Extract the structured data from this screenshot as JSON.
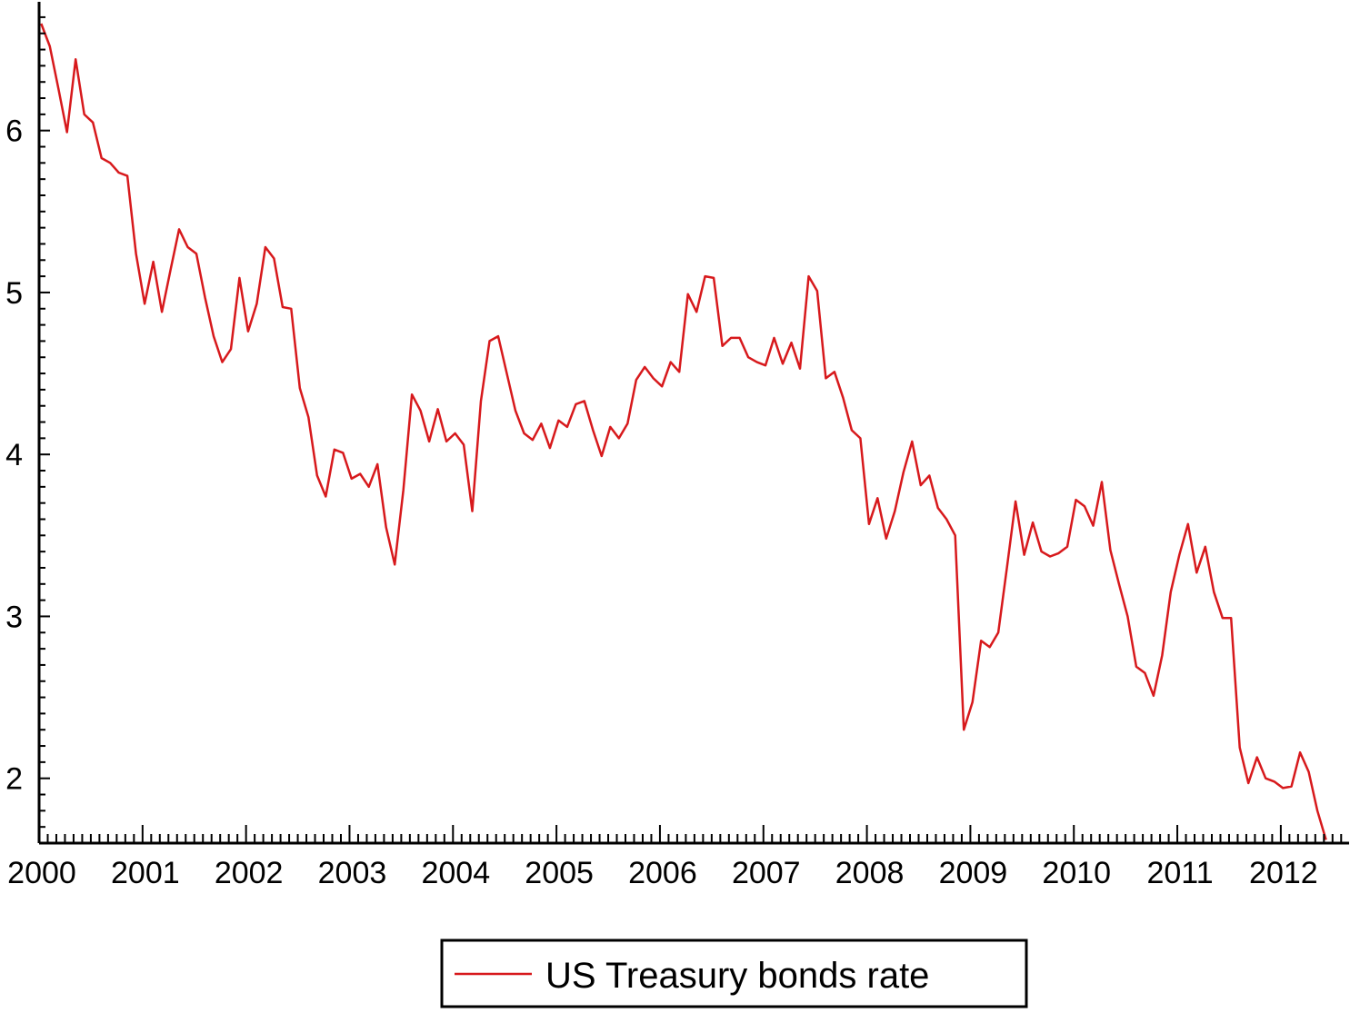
{
  "chart_data": {
    "type": "line",
    "title": "",
    "xlabel": "",
    "ylabel": "",
    "x_start": "2000-01",
    "x_step": "month",
    "xlim": [
      2000.0,
      2012.66
    ],
    "ylim": [
      1.6,
      6.75
    ],
    "x_ticks": [
      2000,
      2001,
      2002,
      2003,
      2004,
      2005,
      2006,
      2007,
      2008,
      2009,
      2010,
      2011,
      2012
    ],
    "x_tick_labels": [
      "2000",
      "2001",
      "2002",
      "2003",
      "2004",
      "2005",
      "2006",
      "2007",
      "2008",
      "2009",
      "2010",
      "2011",
      "2012"
    ],
    "y_ticks": [
      2,
      3,
      4,
      5,
      6
    ],
    "y_tick_labels": [
      "2",
      "3",
      "4",
      "5",
      "6"
    ],
    "grid": false,
    "legend_position": "bottom-center",
    "series": [
      {
        "name": "US Treasury bonds rate",
        "color": "#d7191c",
        "values": [
          6.66,
          6.52,
          6.26,
          5.99,
          6.44,
          6.1,
          6.05,
          5.83,
          5.8,
          5.74,
          5.72,
          5.24,
          4.93,
          5.19,
          4.88,
          5.14,
          5.39,
          5.28,
          5.24,
          4.97,
          4.73,
          4.57,
          4.65,
          5.09,
          4.76,
          4.93,
          5.28,
          5.21,
          4.91,
          4.9,
          4.41,
          4.23,
          3.87,
          3.74,
          4.03,
          4.01,
          3.85,
          3.88,
          3.8,
          3.94,
          3.55,
          3.32,
          3.78,
          4.37,
          4.27,
          4.08,
          4.28,
          4.08,
          4.13,
          4.06,
          3.65,
          4.33,
          4.7,
          4.73,
          4.5,
          4.27,
          4.13,
          4.09,
          4.19,
          4.04,
          4.21,
          4.17,
          4.31,
          4.33,
          4.15,
          3.99,
          4.17,
          4.1,
          4.19,
          4.46,
          4.54,
          4.47,
          4.42,
          4.57,
          4.51,
          4.99,
          4.88,
          5.1,
          5.09,
          4.67,
          4.72,
          4.72,
          4.6,
          4.57,
          4.55,
          4.72,
          4.56,
          4.69,
          4.53,
          5.1,
          5.01,
          4.47,
          4.51,
          4.35,
          4.15,
          4.1,
          3.57,
          3.73,
          3.48,
          3.65,
          3.89,
          4.08,
          3.81,
          3.87,
          3.67,
          3.6,
          3.5,
          2.3,
          2.47,
          2.85,
          2.81,
          2.9,
          3.3,
          3.71,
          3.38,
          3.58,
          3.4,
          3.37,
          3.39,
          3.43,
          3.72,
          3.68,
          3.56,
          3.83,
          3.41,
          3.2,
          3.0,
          2.69,
          2.65,
          2.51,
          2.76,
          3.15,
          3.38,
          3.57,
          3.27,
          3.43,
          3.15,
          2.99,
          2.99,
          2.19,
          1.97,
          2.13,
          2.0,
          1.98,
          1.94,
          1.95,
          2.16,
          2.04,
          1.8,
          1.62
        ]
      }
    ]
  }
}
